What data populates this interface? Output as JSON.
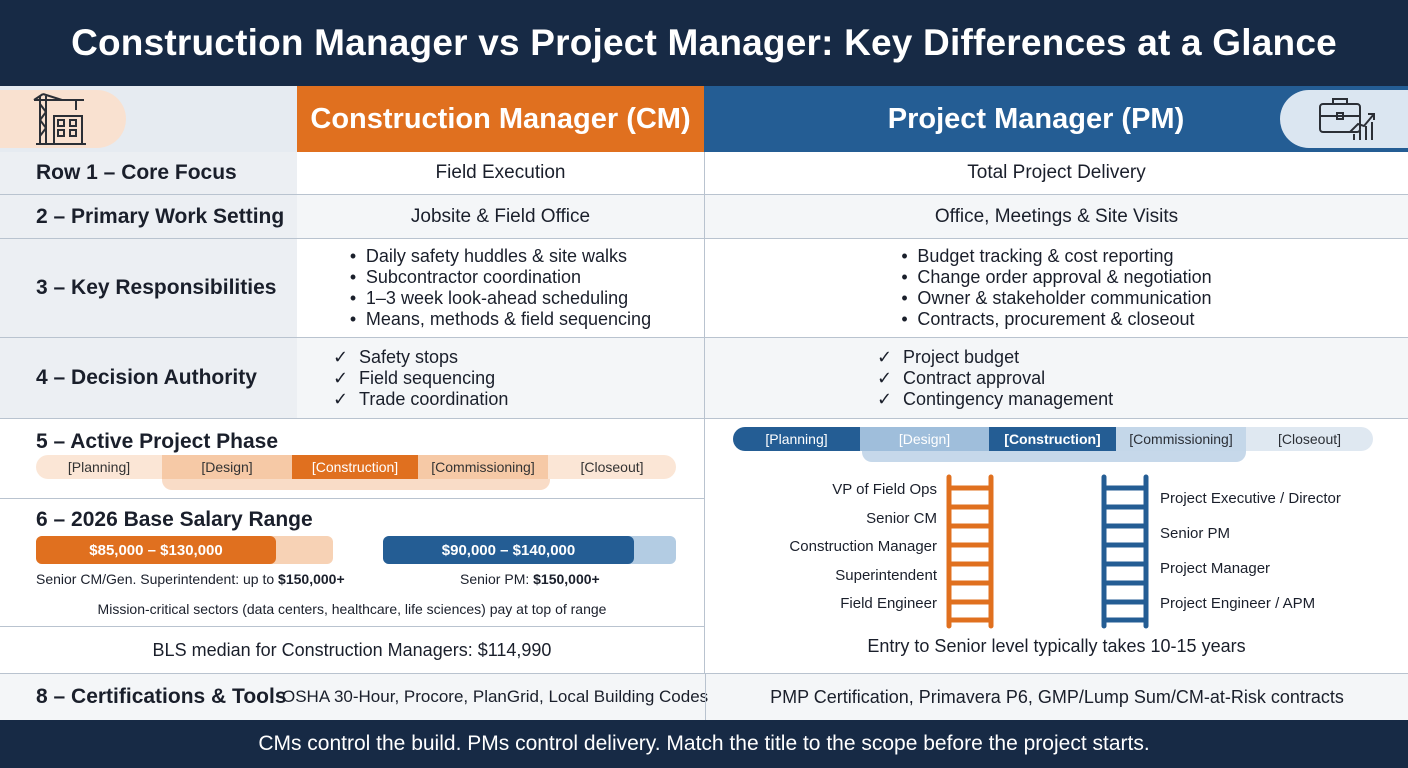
{
  "title": "Construction Manager vs Project Manager: Key Differences at a Glance",
  "header": {
    "left_icon": "construction-crane-building-icon",
    "cm": "Construction Manager (CM)",
    "pm": "Project Manager (PM)",
    "right_icon": "briefcase-growth-chart-icon"
  },
  "rows": {
    "core_focus": {
      "label": "Row 1 – Core Focus",
      "cm": "Field Execution",
      "pm": "Total Project Delivery"
    },
    "work_setting": {
      "label": "2 – Primary Work Setting",
      "cm": "Jobsite & Field Office",
      "pm": "Office, Meetings & Site Visits"
    },
    "responsibilities": {
      "label": "3 – Key Responsibilities",
      "cm": [
        "Daily safety huddles & site walks",
        "Subcontractor coordination",
        "1–3 week look-ahead scheduling",
        "Means, methods & field sequencing"
      ],
      "pm": [
        "Budget tracking & cost reporting",
        "Change order approval & negotiation",
        "Owner & stakeholder communication",
        "Contracts, procurement & closeout"
      ]
    },
    "authority": {
      "label": "4 – Decision Authority",
      "check": "✓",
      "cm": [
        "Safety stops",
        "Field sequencing",
        "Trade coordination"
      ],
      "pm": [
        "Project budget",
        "Contract approval",
        "Contingency management"
      ]
    },
    "phase": {
      "label": "5 – Active Project Phase",
      "phases": [
        "[Planning]",
        "[Design]",
        "[Construction]",
        "[Commissioning]",
        "[Closeout]"
      ]
    },
    "salary": {
      "label": "6 – 2026 Base Salary Range",
      "cm_range": "$85,000 – $130,000",
      "pm_range": "$90,000 – $140,000",
      "cm_senior_prefix": "Senior CM/Gen. Superintendent: up to ",
      "cm_senior_value": "$150,000+",
      "pm_senior_prefix": "Senior PM: ",
      "pm_senior_value": "$150,000+",
      "note": "Mission-critical sectors (data centers, healthcare, life sciences) pay at top of range"
    },
    "bls": {
      "text": "BLS median for Construction Managers: $114,990"
    },
    "ladder": {
      "cm": [
        "VP of Field Ops",
        "Senior CM",
        "Construction Manager",
        "Superintendent",
        "Field Engineer"
      ],
      "pm": [
        "Project Executive / Director",
        "Senior PM",
        "Project Manager",
        "Project Engineer / APM"
      ],
      "note": "Entry to Senior level typically takes 10-15 years"
    },
    "certs": {
      "label": "8 – Certifications & Tools",
      "cm": "OSHA 30-Hour, Procore, PlanGrid, Local Building Codes",
      "pm": "PMP Certification, Primavera P6, GMP/Lump Sum/CM-at-Risk contracts"
    }
  },
  "colors": {
    "navy": "#172a45",
    "orange": "#e0701f",
    "blue": "#245d94"
  },
  "footer": "CMs control the build. PMs control delivery. Match the title to the scope before the project starts."
}
